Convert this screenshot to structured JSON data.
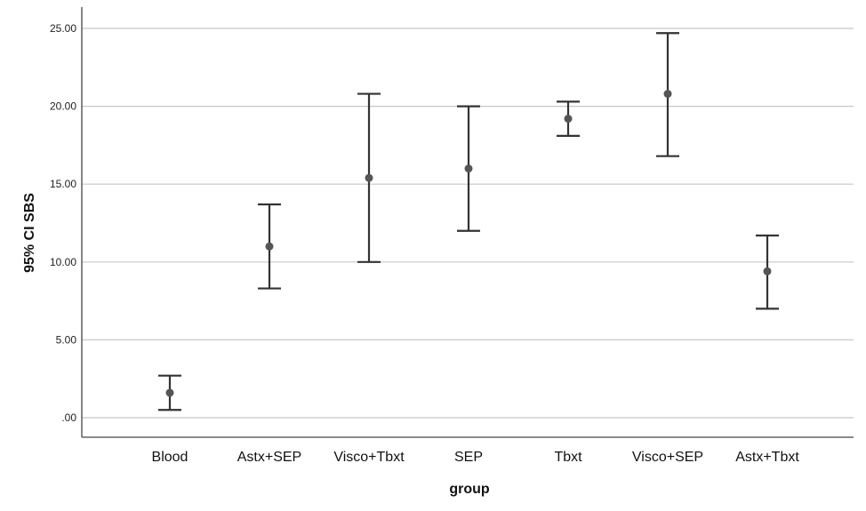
{
  "chart_data": {
    "type": "errorbar",
    "xlabel": "group",
    "ylabel": "95% CI SBS",
    "ylim": [
      0,
      25
    ],
    "yticks": [
      0,
      5,
      10,
      15,
      20,
      25
    ],
    "ytick_labels": [
      ".00",
      "5.00",
      "10.00",
      "15.00",
      "20.00",
      "25.00"
    ],
    "grid": true,
    "categories": [
      "Blood",
      "Astx+SEP",
      "Visco+Tbxt",
      "SEP",
      "Tbxt",
      "Visco+SEP",
      "Astx+Tbxt"
    ],
    "series": [
      {
        "mean": [
          1.6,
          11.0,
          15.4,
          16.0,
          19.2,
          20.8,
          9.4
        ],
        "lower": [
          0.5,
          8.3,
          10.0,
          12.0,
          18.1,
          16.8,
          7.0
        ],
        "upper": [
          2.7,
          13.7,
          20.8,
          20.0,
          20.3,
          24.7,
          11.7
        ]
      }
    ],
    "colors": {
      "grid": "#c8c8c8",
      "axis": "#444444",
      "whisker": "#333333",
      "point": "#555555"
    }
  }
}
